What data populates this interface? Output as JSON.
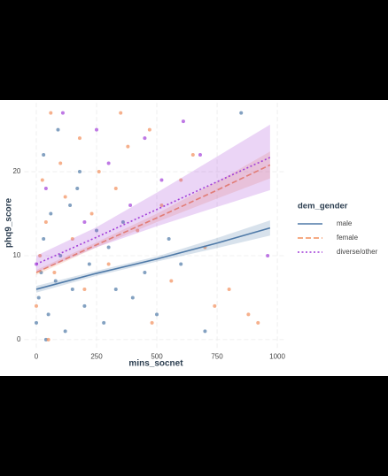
{
  "chart_data": {
    "type": "scatter",
    "x_label": "mins_socnet",
    "y_label": "phq9_score",
    "legend_title": "dem_gender",
    "xlim": [
      -50,
      1030
    ],
    "ylim": [
      -1.2,
      28.2
    ],
    "xticks": [
      0,
      250,
      500,
      750,
      1000
    ],
    "yticks": [
      0,
      10,
      20
    ],
    "grid": true,
    "series": [
      {
        "name": "male",
        "color": "#4e79a7",
        "line_style": "solid",
        "x": [
          0,
          10,
          20,
          30,
          50,
          60,
          80,
          100,
          120,
          150,
          170,
          200,
          220,
          250,
          280,
          300,
          330,
          360,
          400,
          450,
          500,
          550,
          600,
          700,
          850,
          30,
          90,
          180,
          40,
          140
        ],
        "values": [
          2,
          5,
          8,
          12,
          3,
          15,
          7,
          10,
          1,
          6,
          18,
          4,
          9,
          13,
          2,
          11,
          6,
          14,
          5,
          8,
          3,
          12,
          9,
          1,
          27,
          22,
          25,
          20,
          0,
          16
        ],
        "fit": {
          "x": [
            0,
            250,
            500,
            750,
            970
          ],
          "values": [
            6.0,
            7.9,
            9.6,
            11.5,
            13.3
          ],
          "lower": [
            5.6,
            7.6,
            9.3,
            10.9,
            12.4
          ],
          "upper": [
            6.4,
            8.2,
            9.9,
            12.1,
            14.2
          ]
        }
      },
      {
        "name": "female",
        "color": "#f28e5b",
        "line_style": "dashed",
        "x": [
          0,
          15,
          25,
          40,
          60,
          75,
          100,
          120,
          150,
          180,
          200,
          230,
          260,
          300,
          330,
          380,
          420,
          470,
          520,
          560,
          600,
          650,
          700,
          740,
          800,
          880,
          920,
          50,
          350,
          480
        ],
        "values": [
          4,
          10,
          19,
          14,
          27,
          8,
          21,
          17,
          12,
          24,
          6,
          15,
          20,
          9,
          18,
          23,
          13,
          25,
          16,
          7,
          19,
          22,
          11,
          4,
          6,
          3,
          2,
          0,
          27,
          2
        ],
        "fit": {
          "x": [
            0,
            250,
            500,
            750,
            970
          ],
          "values": [
            8.0,
            11.3,
            14.5,
            17.8,
            20.8
          ],
          "lower": [
            7.7,
            11.0,
            14.0,
            16.8,
            19.2
          ],
          "upper": [
            8.3,
            11.6,
            15.0,
            18.8,
            22.4
          ]
        }
      },
      {
        "name": "diverse/other",
        "color": "#a23ed8",
        "line_style": "dotted",
        "x": [
          0,
          40,
          110,
          200,
          300,
          390,
          450,
          520,
          680,
          960,
          610,
          250
        ],
        "values": [
          9,
          18,
          27,
          14,
          21,
          16,
          24,
          19,
          22,
          10,
          26,
          25
        ],
        "fit": {
          "x": [
            0,
            250,
            500,
            750,
            970
          ],
          "values": [
            9.0,
            12.2,
            15.5,
            18.8,
            21.7
          ],
          "lower": [
            8.0,
            11.0,
            13.5,
            15.8,
            17.8
          ],
          "upper": [
            10.0,
            13.4,
            17.5,
            21.8,
            25.6
          ]
        }
      }
    ]
  }
}
